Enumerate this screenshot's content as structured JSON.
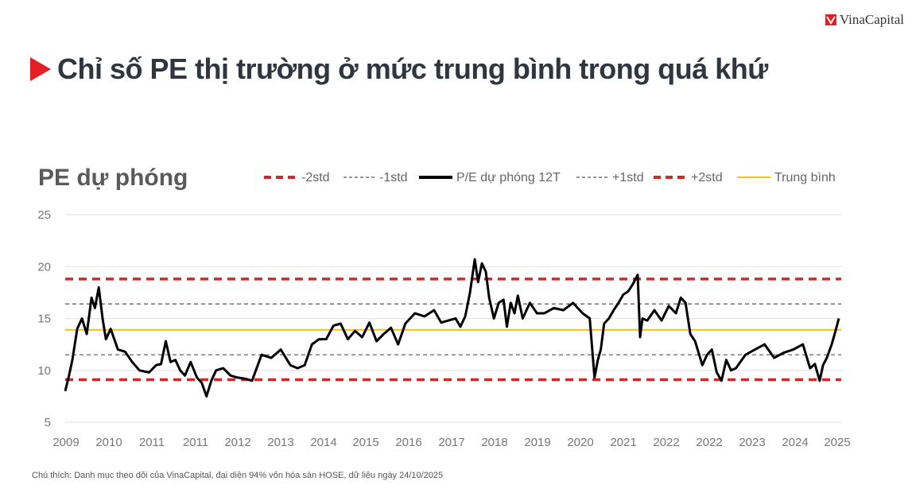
{
  "brand": {
    "name": "VinaCapital",
    "mark_color": "#e31e24"
  },
  "header": {
    "title": "Chỉ số PE thị trường ở mức trung bình trong quá khứ",
    "arrow_color": "#e31e24"
  },
  "footnote": "Chú thích: Danh mục theo dõi của VinaCapital, đại diện 94% vốn hóa sàn HOSE, dữ liệu ngày 24/10/2025",
  "chart_data": {
    "type": "line",
    "title": "PE dự phóng",
    "ylim": [
      5,
      25
    ],
    "yticks": [
      5,
      10,
      15,
      20,
      25
    ],
    "xlim": [
      2009.0,
      2025.2
    ],
    "xtick_labels": [
      "2009",
      "2010",
      "2011",
      "2011",
      "2012",
      "2013",
      "2014",
      "2015",
      "2016",
      "2017",
      "2018",
      "2019",
      "2020",
      "2021",
      "2022",
      "2022",
      "2023",
      "2024",
      "2025"
    ],
    "legend": [
      {
        "name": "-2std",
        "style": "dash-thick",
        "color": "#d62728"
      },
      {
        "name": "-1std",
        "style": "dash-thin",
        "color": "#555555"
      },
      {
        "name": "P/E dự phóng 12T",
        "style": "solid-thick",
        "color": "#000000"
      },
      {
        "name": "+1std",
        "style": "dash-thin",
        "color": "#555555"
      },
      {
        "name": "+2std",
        "style": "dash-thick",
        "color": "#d62728"
      },
      {
        "name": "Trung bình",
        "style": "solid-thin",
        "color": "#f2c500"
      }
    ],
    "reference_lines": {
      "-2std": 9.1,
      "-1std": 11.5,
      "mean": 13.9,
      "+1std": 16.4,
      "+2std": 18.8
    },
    "grid": "horizontal",
    "legend_position": "top",
    "series": [
      {
        "name": "P/E dự phóng 12T",
        "x": [
          2009.0,
          2009.08,
          2009.15,
          2009.25,
          2009.35,
          2009.45,
          2009.55,
          2009.62,
          2009.7,
          2009.78,
          2009.85,
          2009.95,
          2010.1,
          2010.25,
          2010.4,
          2010.55,
          2010.75,
          2010.9,
          2011.0,
          2011.1,
          2011.2,
          2011.3,
          2011.4,
          2011.5,
          2011.62,
          2011.75,
          2011.85,
          2011.95,
          2012.05,
          2012.15,
          2012.3,
          2012.45,
          2012.6,
          2012.75,
          2012.9,
          2013.1,
          2013.3,
          2013.5,
          2013.7,
          2013.85,
          2014.0,
          2014.15,
          2014.3,
          2014.45,
          2014.6,
          2014.75,
          2014.9,
          2015.05,
          2015.2,
          2015.35,
          2015.5,
          2015.65,
          2015.8,
          2015.95,
          2016.1,
          2016.3,
          2016.5,
          2016.7,
          2016.85,
          2017.0,
          2017.15,
          2017.25,
          2017.35,
          2017.45,
          2017.55,
          2017.62,
          2017.7,
          2017.78,
          2017.85,
          2017.95,
          2018.05,
          2018.15,
          2018.22,
          2018.3,
          2018.38,
          2018.45,
          2018.55,
          2018.7,
          2018.85,
          2019.0,
          2019.2,
          2019.4,
          2019.6,
          2019.8,
          2019.95,
          2020.05,
          2020.12,
          2020.18,
          2020.25,
          2020.35,
          2020.45,
          2020.55,
          2020.65,
          2020.75,
          2020.85,
          2020.95,
          2021.0,
          2021.05,
          2021.15,
          2021.3,
          2021.45,
          2021.6,
          2021.75,
          2021.85,
          2021.95,
          2022.05,
          2022.15,
          2022.3,
          2022.4,
          2022.5,
          2022.6,
          2022.7,
          2022.8,
          2022.9,
          2023.0,
          2023.2,
          2023.4,
          2023.6,
          2023.8,
          2024.0,
          2024.2,
          2024.4,
          2024.55,
          2024.65,
          2024.75,
          2024.82,
          2024.9,
          2025.0,
          2025.08,
          2025.15
        ],
        "y": [
          8.0,
          9.5,
          11.0,
          14.0,
          15.0,
          13.5,
          17.0,
          16.0,
          18.0,
          15.0,
          13.0,
          14.0,
          12.0,
          11.8,
          10.8,
          10.0,
          9.8,
          10.5,
          10.6,
          12.8,
          10.8,
          11.0,
          10.0,
          9.5,
          10.8,
          9.3,
          8.8,
          7.5,
          9.0,
          10.0,
          10.2,
          9.5,
          9.3,
          9.2,
          9.0,
          11.5,
          11.2,
          12.0,
          10.5,
          10.2,
          10.5,
          12.5,
          13.0,
          13.0,
          14.3,
          14.5,
          13.0,
          13.8,
          13.2,
          14.6,
          12.8,
          13.5,
          14.1,
          12.5,
          14.5,
          15.5,
          15.2,
          15.8,
          14.6,
          14.8,
          15.0,
          14.2,
          15.2,
          17.5,
          20.7,
          18.5,
          20.3,
          19.5,
          17.0,
          15.0,
          16.5,
          16.8,
          14.2,
          16.5,
          15.5,
          17.2,
          15.0,
          16.5,
          15.5,
          15.5,
          16.0,
          15.8,
          16.5,
          15.5,
          15.0,
          9.3,
          11.0,
          12.0,
          14.5,
          15.0,
          15.8,
          16.5,
          17.3,
          17.6,
          18.3,
          19.2,
          13.2,
          15.0,
          14.8,
          15.8,
          14.8,
          16.2,
          15.5,
          17.0,
          16.5,
          13.5,
          12.8,
          10.5,
          11.5,
          12.0,
          9.8,
          9.0,
          11.0,
          10.0,
          10.2,
          11.5,
          12.0,
          12.5,
          11.2,
          11.7,
          12.0,
          12.5,
          10.2,
          10.6,
          9.0,
          10.5,
          11.2,
          12.5,
          13.8,
          15.0
        ]
      }
    ]
  }
}
